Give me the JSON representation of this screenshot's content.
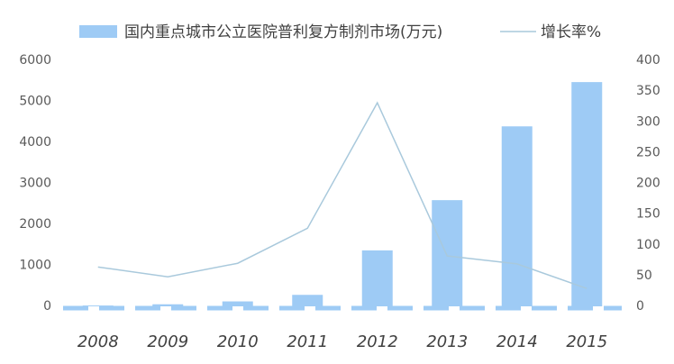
{
  "chart_data": {
    "type": "bar-line",
    "categories": [
      "2008",
      "2009",
      "2010",
      "2011",
      "2012",
      "2013",
      "2014",
      "2015"
    ],
    "series": [
      {
        "name": "国内重点城市公立医院普利复方制剂市场(万元)",
        "color": "#9ecbf5",
        "type": "bar",
        "values": [
          20,
          50,
          120,
          280,
          1365,
          2590,
          4390,
          5470
        ]
      },
      {
        "name": "增长率%",
        "color": "#a9c9dc",
        "type": "line",
        "axis": "y2",
        "values": [
          64,
          48,
          70,
          127,
          331,
          82,
          69,
          29
        ]
      }
    ],
    "ylim": [
      0,
      6000
    ],
    "yticks": [
      0,
      1000,
      2000,
      3000,
      4000,
      5000,
      6000
    ],
    "y2lim": [
      0,
      400
    ],
    "y2ticks": [
      0,
      50,
      100,
      150,
      200,
      250,
      300,
      350,
      400
    ],
    "legend": "top",
    "grid": false
  }
}
